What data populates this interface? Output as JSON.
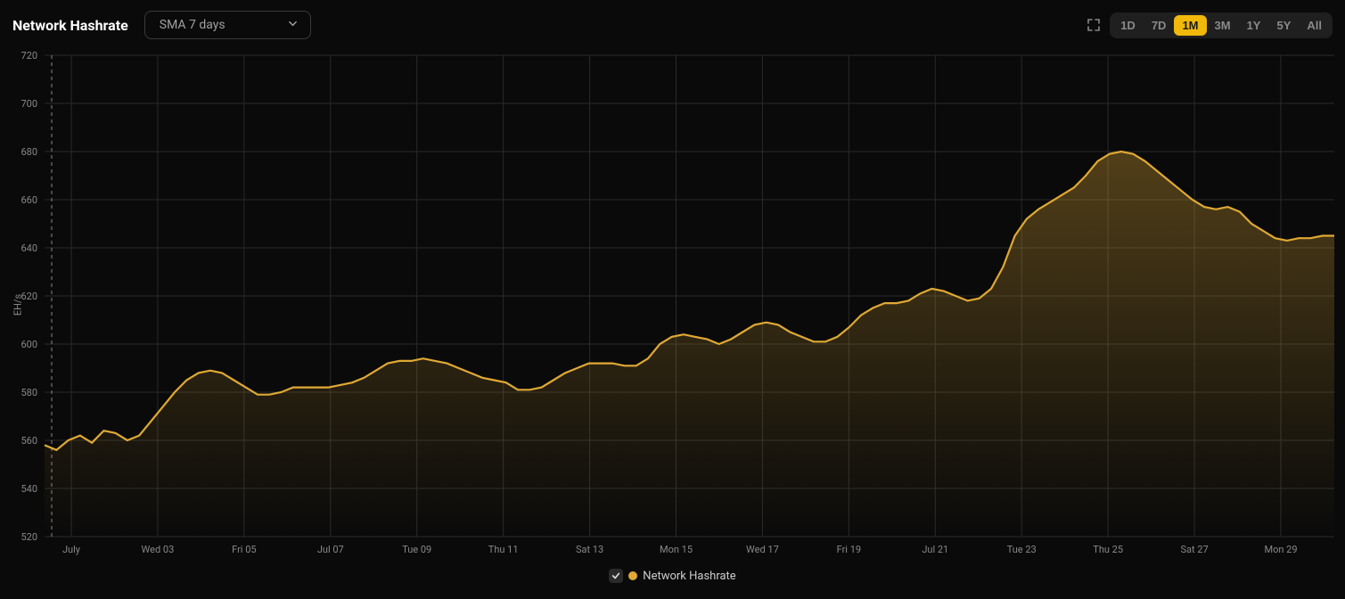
{
  "header": {
    "title": "Network Hashrate",
    "dropdown": {
      "selected": "SMA 7 days"
    },
    "ranges": [
      "1D",
      "7D",
      "1M",
      "3M",
      "1Y",
      "5Y",
      "All"
    ],
    "active_range": "1M"
  },
  "chart": {
    "type": "area",
    "ylabel": "EH/s",
    "ylim": [
      520,
      720
    ],
    "ytick_step": 20,
    "yticks": [
      520,
      540,
      560,
      580,
      600,
      620,
      640,
      660,
      680,
      700,
      720
    ],
    "xticks": [
      "July",
      "Wed 03",
      "Fri 05",
      "Jul 07",
      "Tue 09",
      "Thu 11",
      "Sat 13",
      "Mon 15",
      "Wed 17",
      "Fri 19",
      "Jul 21",
      "Tue 23",
      "Thu 25",
      "Sat 27",
      "Mon 29"
    ],
    "background_color": "#0a0a0a",
    "grid_color": "#2a2a2a",
    "series": {
      "name": "Network Hashrate",
      "line_color": "#e0a934",
      "fill_top_color": "#e0a93455",
      "fill_bottom_color": "#e0a93400",
      "line_width": 2.2,
      "values": [
        558,
        556,
        560,
        562,
        559,
        564,
        563,
        560,
        562,
        568,
        574,
        580,
        585,
        588,
        589,
        588,
        585,
        582,
        579,
        579,
        580,
        582,
        582,
        582,
        582,
        583,
        584,
        586,
        589,
        592,
        593,
        593,
        594,
        593,
        592,
        590,
        588,
        586,
        585,
        584,
        581,
        581,
        582,
        585,
        588,
        590,
        592,
        592,
        592,
        591,
        591,
        594,
        600,
        603,
        604,
        603,
        602,
        600,
        602,
        605,
        608,
        609,
        608,
        605,
        603,
        601,
        601,
        603,
        607,
        612,
        615,
        617,
        617,
        618,
        621,
        623,
        622,
        620,
        618,
        619,
        623,
        632,
        645,
        652,
        656,
        659,
        662,
        665,
        670,
        676,
        679,
        680,
        679,
        676,
        672,
        668,
        664,
        660,
        657,
        656,
        657,
        655,
        650,
        647,
        644,
        643,
        644,
        644,
        645,
        645
      ]
    },
    "reference_line_x": 0,
    "label_fontsize": 11,
    "label_color": "#888888"
  },
  "legend": {
    "checked": true,
    "dot_color": "#e0a934",
    "label": "Network Hashrate"
  }
}
